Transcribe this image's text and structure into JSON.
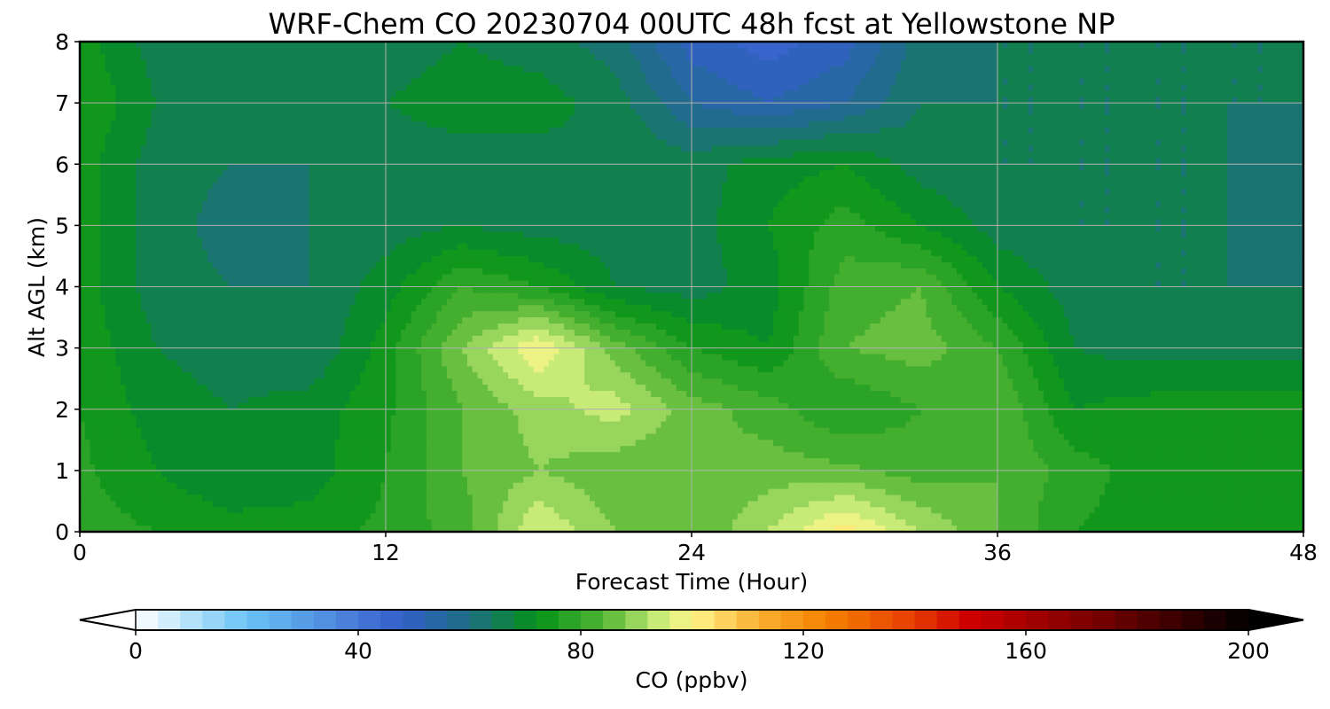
{
  "chart_data": {
    "type": "heatmap",
    "title": "WRF-Chem CO  20230704 00UTC 48h fcst at Yellowstone NP",
    "xlabel": "Forecast Time (Hour)",
    "ylabel": "Alt AGL (km)",
    "xlim": [
      0,
      48
    ],
    "ylim": [
      0,
      8
    ],
    "xticks": [
      0,
      12,
      24,
      36,
      48
    ],
    "yticks": [
      0,
      1,
      2,
      3,
      4,
      5,
      6,
      7,
      8
    ],
    "grid": true,
    "colorbar": {
      "label": "CO  (ppbv)",
      "range": [
        0,
        200
      ],
      "ticks": [
        0,
        40,
        80,
        120,
        160,
        200
      ],
      "extend": "both",
      "orientation": "horizontal",
      "placement": "bottom"
    },
    "x": [
      0,
      3,
      6,
      9,
      12,
      15,
      18,
      21,
      24,
      27,
      30,
      33,
      36,
      39,
      42,
      45,
      48
    ],
    "y": [
      0,
      1,
      2,
      3,
      4,
      5,
      6,
      7,
      8
    ],
    "z": [
      [
        78,
        76,
        74,
        74,
        77,
        82,
        96,
        88,
        84,
        92,
        102,
        92,
        84,
        76,
        74,
        74,
        74
      ],
      [
        77,
        72,
        68,
        70,
        76,
        84,
        88,
        85,
        84,
        86,
        85,
        82,
        84,
        78,
        74,
        74,
        74
      ],
      [
        76,
        70,
        68,
        70,
        75,
        84,
        90,
        94,
        86,
        82,
        76,
        80,
        84,
        72,
        74,
        74,
        74
      ],
      [
        75,
        68,
        66,
        64,
        74,
        88,
        100,
        86,
        76,
        72,
        84,
        86,
        80,
        68,
        66,
        66,
        66
      ],
      [
        74,
        66,
        64,
        64,
        70,
        80,
        76,
        68,
        66,
        70,
        82,
        84,
        72,
        66,
        64,
        64,
        64
      ],
      [
        74,
        66,
        62,
        64,
        66,
        68,
        66,
        66,
        66,
        72,
        78,
        72,
        66,
        64,
        64,
        64,
        60
      ],
      [
        74,
        66,
        64,
        64,
        66,
        66,
        66,
        68,
        66,
        70,
        72,
        66,
        64,
        64,
        64,
        64,
        62
      ],
      [
        76,
        68,
        66,
        66,
        68,
        70,
        70,
        66,
        56,
        52,
        56,
        64,
        64,
        64,
        64,
        64,
        64
      ],
      [
        74,
        66,
        66,
        66,
        66,
        68,
        66,
        62,
        50,
        46,
        50,
        62,
        64,
        64,
        64,
        64,
        64
      ]
    ]
  }
}
